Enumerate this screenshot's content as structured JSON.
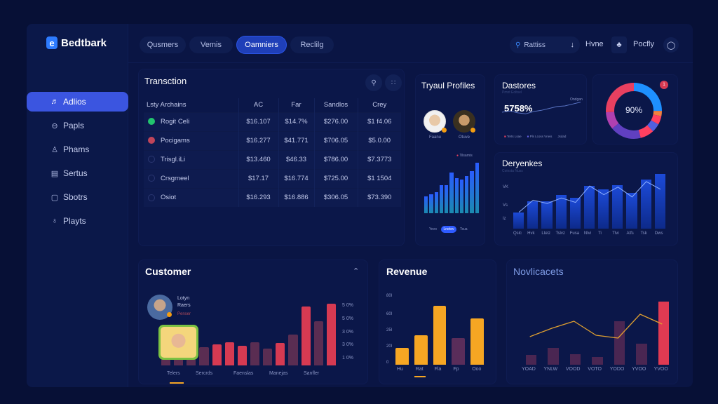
{
  "brand": {
    "logo_letter": "e",
    "name": "Bedtbark"
  },
  "header": {
    "tabs": [
      {
        "label": "Qusmers",
        "active": false
      },
      {
        "label": "Vemis",
        "active": false
      },
      {
        "label": "Oamniers",
        "active": true
      },
      {
        "label": "Reclilg",
        "active": false
      }
    ],
    "search": {
      "placeholder": "Rattiss",
      "icon": "search-icon"
    },
    "download_icon": "download-icon",
    "home_label": "Hvne",
    "bell_icon": "bell-icon",
    "profile_label": "Pocfly",
    "help_icon": "help-icon"
  },
  "sidebar": {
    "items": [
      {
        "label": "Adlios",
        "icon": "chart-user-icon",
        "glyph": "♬",
        "active": true
      },
      {
        "label": "Papls",
        "icon": "card-icon",
        "glyph": "⊖",
        "active": false
      },
      {
        "label": "Phams",
        "icon": "user-icon",
        "glyph": "♙",
        "active": false
      },
      {
        "label": "Sertus",
        "icon": "document-icon",
        "glyph": "▤",
        "active": false
      },
      {
        "label": "Sbotrs",
        "icon": "window-icon",
        "glyph": "▢",
        "active": false
      },
      {
        "label": "Playts",
        "icon": "bulb-icon",
        "glyph": "♁",
        "active": false
      }
    ]
  },
  "transactions": {
    "title": "Transction",
    "columns": [
      "Lsty Archains",
      "AC",
      "Far",
      "Sandlos",
      "Crey"
    ],
    "rows": [
      {
        "name": "Rogit Celi",
        "dot": "#22c46e",
        "values": [
          "$16.107",
          "$14.7%",
          "$276.00",
          "$1 f4.06"
        ]
      },
      {
        "name": "Pocigams",
        "dot": "#c0455a",
        "values": [
          "$16.277",
          "$41.771",
          "$706.05",
          "$5.0.00"
        ]
      },
      {
        "name": "Trisgl.iLi",
        "dot": "transparent",
        "values": [
          "$13.460",
          "$46.33",
          "$786.00",
          "$7.3773"
        ]
      },
      {
        "name": "Crsgmeel",
        "dot": "transparent",
        "values": [
          "$17.17",
          "$16.774",
          "$725.00",
          "$1 1504"
        ]
      },
      {
        "name": "Osiot",
        "dot": "transparent",
        "values": [
          "$16.293",
          "$16.886",
          "$306.05",
          "$73.390"
        ]
      }
    ]
  },
  "typical_profiles": {
    "title": "Tryaul Profiles",
    "profiles": [
      {
        "name": "Faanu"
      },
      {
        "name": "Otuve"
      }
    ],
    "legend": "Tilsarnis",
    "toggle": [
      "Yevo",
      "Lnetev",
      "Tsua"
    ],
    "toggle_active": 1
  },
  "dastores": {
    "title": "Dastores",
    "subtitle": "Pmnt Eoltsel",
    "value": "5758%",
    "tag": "Ondgan",
    "legend": [
      "Terts Lsae",
      "Pls Lcoss Vneis",
      "Jsdad"
    ]
  },
  "donut": {
    "value": "90%",
    "badge": "1"
  },
  "deryenkes": {
    "title": "Deryenkes",
    "subtitle": "Coinsta Nuss"
  },
  "customer": {
    "title": "Customer",
    "person": {
      "name": "Lotyn Raers",
      "role": "Penser"
    },
    "xlabels": [
      "Telers",
      "Sercrds",
      "Faenslas",
      "Manejas",
      "Sanfler"
    ]
  },
  "revenue": {
    "title": "Revenue"
  },
  "novlicacets": {
    "title": "Novlicacets"
  },
  "chart_data": [
    {
      "type": "bar",
      "title": "Tryaul Profiles",
      "values": [
        30,
        34,
        38,
        50,
        50,
        72,
        62,
        60,
        66,
        75,
        90
      ],
      "colors": "blue-teal gradient"
    },
    {
      "type": "line",
      "title": "Dastores",
      "values": [
        40,
        44,
        38,
        35,
        42,
        46,
        52,
        58,
        60,
        66,
        72
      ],
      "annotation": "5758%"
    },
    {
      "type": "pie",
      "title": "Donut",
      "center_label": "90%",
      "segments": [
        {
          "color": "#1e90ff",
          "value": 25
        },
        {
          "color": "#f08040",
          "value": 3
        },
        {
          "color": "#ff4060",
          "value": 5
        },
        {
          "color": "#5060e0",
          "value": 5
        },
        {
          "color": "#ff4060",
          "value": 8
        },
        {
          "color": "#6040c0",
          "value": 18
        },
        {
          "color": "#b040b0",
          "value": 10
        },
        {
          "color": "#e84060",
          "value": 26
        }
      ]
    },
    {
      "type": "bar",
      "title": "Deryenkes",
      "categories": [
        "Qslc",
        "Hvk",
        "Ltelz",
        "Tslvz",
        "Fusa",
        "Nlvi",
        "Ti",
        "Tlvi",
        "Atfs",
        "Tsk",
        "Dws"
      ],
      "values": [
        30,
        50,
        50,
        62,
        57,
        78,
        72,
        80,
        66,
        90,
        100
      ],
      "line": [
        30,
        52,
        46,
        56,
        48,
        78,
        62,
        76,
        58,
        86,
        72
      ],
      "yticks": [
        "Iz",
        "Vs",
        "VK"
      ]
    },
    {
      "type": "bar",
      "title": "Customer",
      "categories": [
        "Telers",
        "Sercrds",
        "Faenslas",
        "Manejas",
        "Sanfler"
      ],
      "values": [
        10,
        10,
        10,
        28,
        32,
        36,
        30,
        35,
        26,
        34,
        47,
        90,
        68,
        95
      ],
      "highlight": [
        false,
        false,
        false,
        false,
        true,
        true,
        true,
        false,
        false,
        true,
        false,
        true,
        false,
        true
      ],
      "yticks": [
        "1 0%",
        "3 0%",
        "3 0%",
        "5 0%",
        "5 0%"
      ]
    },
    {
      "type": "bar",
      "title": "Revenue",
      "categories": [
        "Hu",
        "Rat",
        "Fla",
        "Fp",
        "Ooo"
      ],
      "values": [
        20,
        35,
        70,
        32,
        55
      ],
      "colors": [
        "#f6a623",
        "#f6a623",
        "#f6a623",
        "#5a2d5a",
        "#f6a623"
      ],
      "yticks": [
        "0",
        "20l",
        "25l",
        "60l",
        "80l"
      ],
      "ylim": [
        0,
        80
      ]
    },
    {
      "type": "bar",
      "title": "Novlicacets",
      "categories": [
        "YOAD",
        "YNLW",
        "VOOD",
        "VOTO",
        "YODO",
        "YVOO",
        "YVOO"
      ],
      "values": [
        14,
        24,
        15,
        11,
        62,
        30,
        90
      ],
      "colors": [
        "#4a2652",
        "#4a2652",
        "#4a2652",
        "#4a2652",
        "#4a2652",
        "#4a2652",
        "#e03a52"
      ],
      "line": [
        40,
        52,
        62,
        42,
        38,
        72,
        58
      ]
    }
  ]
}
